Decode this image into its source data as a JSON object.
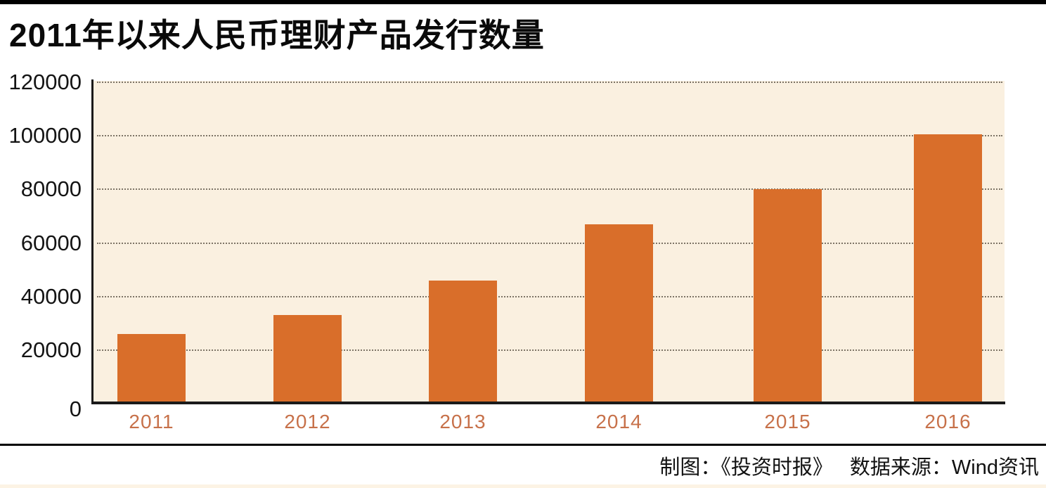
{
  "page": {
    "title": "2011年以来人民币理财产品发行数量",
    "footer": {
      "credit": "制图：《投资时报》",
      "source": "数据来源：Wind资讯"
    }
  },
  "chart_data": {
    "type": "bar",
    "title": "2011年以来人民币理财产品发行数量",
    "categories": [
      "2011",
      "2012",
      "2013",
      "2014",
      "2015",
      "2016"
    ],
    "values": [
      26000,
      33000,
      46000,
      67000,
      80000,
      100500
    ],
    "xlabel": "",
    "ylabel": "",
    "ylim": [
      0,
      120000
    ],
    "yticks": [
      0,
      20000,
      40000,
      60000,
      80000,
      100000,
      120000
    ],
    "ytick_labels": [
      "0",
      "20000",
      "40000",
      "60000",
      "80000",
      "100000",
      "120000"
    ],
    "grid": "horizontal-dotted",
    "legend": "none",
    "colors": {
      "bar": "#d96e2a",
      "plot_background": "#faf0e0",
      "x_tick_label": "#c7714a",
      "y_tick_label": "#141414",
      "gridline": "#7d7466",
      "axis": "#1a1a1a",
      "rule": "#000000",
      "bottom_strip": "#fcf3e4"
    }
  }
}
